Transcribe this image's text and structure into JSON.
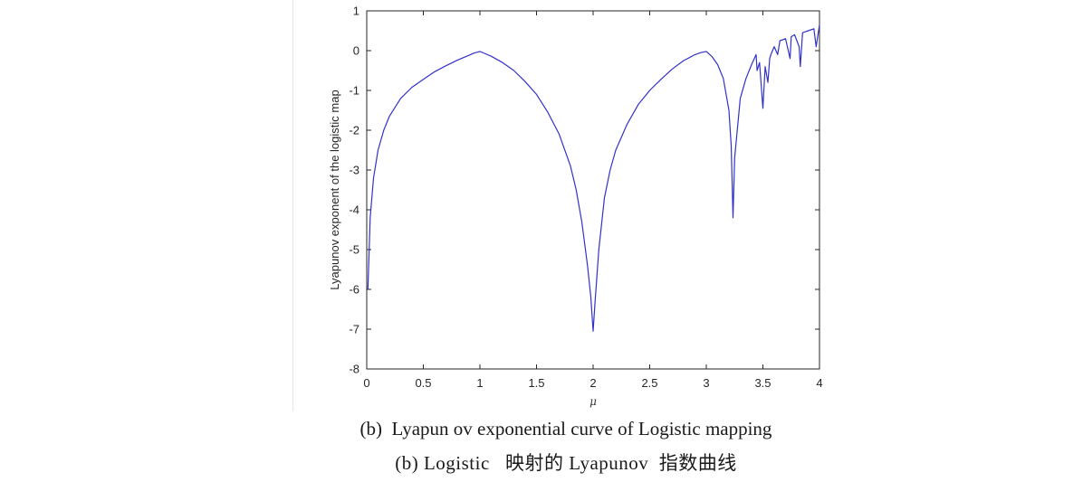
{
  "chart_data": {
    "type": "line",
    "xlabel": "μ",
    "ylabel": "Lyapunov exponent of the logistic map",
    "xlim": [
      0,
      4
    ],
    "ylim": [
      -8,
      1
    ],
    "x_ticks": [
      "0",
      "0.5",
      "1",
      "1.5",
      "2",
      "2.5",
      "3",
      "3.5",
      "4"
    ],
    "y_ticks": [
      "1",
      "0",
      "-1",
      "-2",
      "-3",
      "-4",
      "-5",
      "-6",
      "-7",
      "-8"
    ],
    "grid": false,
    "line_color": "#3232c8",
    "series": [
      {
        "x": [
          0.01,
          0.03,
          0.06,
          0.1,
          0.15,
          0.2,
          0.3,
          0.4,
          0.5,
          0.6,
          0.7,
          0.8,
          0.9,
          0.95,
          1.0,
          1.05,
          1.1,
          1.2,
          1.3,
          1.4,
          1.5,
          1.6,
          1.7,
          1.8,
          1.85,
          1.9,
          1.95,
          1.98,
          2.0,
          2.02,
          2.05,
          2.1,
          2.15,
          2.2,
          2.3,
          2.4,
          2.5,
          2.6,
          2.7,
          2.8,
          2.9,
          2.95,
          3.0,
          3.05,
          3.1,
          3.15,
          3.2,
          3.22,
          3.236,
          3.25,
          3.3,
          3.35,
          3.4,
          3.44,
          3.449,
          3.47,
          3.5,
          3.52,
          3.544,
          3.56,
          3.57,
          3.6,
          3.63,
          3.65,
          3.7,
          3.74,
          3.75,
          3.78,
          3.82,
          3.83,
          3.85,
          3.9,
          3.95,
          3.97,
          4.0
        ],
        "y": [
          -6.0,
          -4.2,
          -3.2,
          -2.5,
          -2.0,
          -1.65,
          -1.2,
          -0.92,
          -0.72,
          -0.53,
          -0.38,
          -0.24,
          -0.12,
          -0.06,
          -0.02,
          -0.08,
          -0.14,
          -0.3,
          -0.5,
          -0.78,
          -1.1,
          -1.55,
          -2.1,
          -2.9,
          -3.5,
          -4.3,
          -5.4,
          -6.2,
          -7.05,
          -6.2,
          -5.0,
          -3.7,
          -3.0,
          -2.5,
          -1.85,
          -1.35,
          -1.0,
          -0.72,
          -0.46,
          -0.25,
          -0.1,
          -0.05,
          -0.02,
          -0.15,
          -0.35,
          -0.7,
          -1.5,
          -2.4,
          -4.2,
          -2.7,
          -1.2,
          -0.7,
          -0.35,
          -0.1,
          -0.5,
          -0.3,
          -1.45,
          -0.4,
          -0.8,
          -0.2,
          -0.1,
          0.1,
          -0.1,
          0.25,
          0.3,
          -0.2,
          0.35,
          0.4,
          0.1,
          -0.4,
          0.45,
          0.5,
          0.55,
          0.1,
          0.65
        ]
      }
    ]
  },
  "captions": {
    "line1": "(b)  Lyapun ov exponential curve of Logistic mapping",
    "line2": "(b) Logistic   映射的 Lyapunov  指数曲线"
  }
}
